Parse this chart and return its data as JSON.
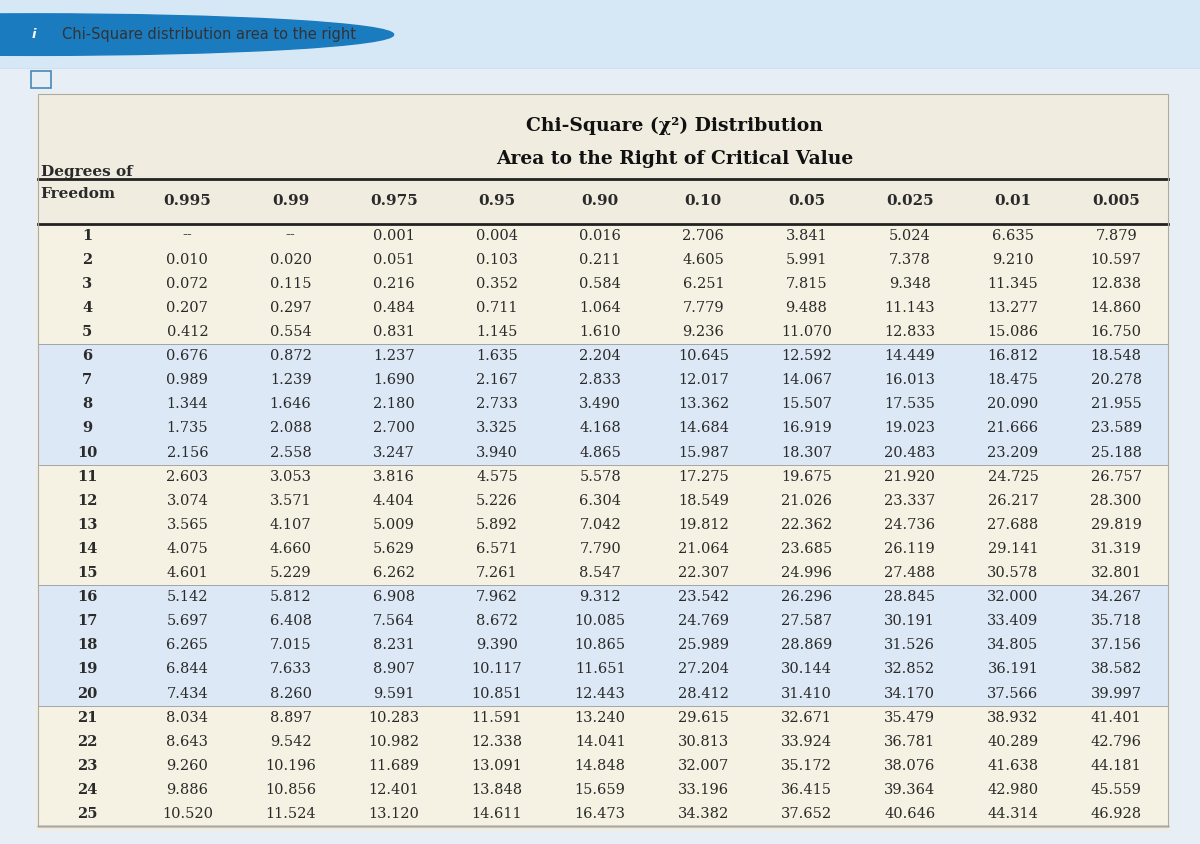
{
  "title_line1": "Chi-Square (χ²) Distribution",
  "title_line2": "Area to the Right of Critical Value",
  "col_headers": [
    "0.995",
    "0.99",
    "0.975",
    "0.95",
    "0.90",
    "0.10",
    "0.05",
    "0.025",
    "0.01",
    "0.005"
  ],
  "rows": [
    [
      1,
      "--",
      "--",
      "0.001",
      "0.004",
      "0.016",
      "2.706",
      "3.841",
      "5.024",
      "6.635",
      "7.879"
    ],
    [
      2,
      "0.010",
      "0.020",
      "0.051",
      "0.103",
      "0.211",
      "4.605",
      "5.991",
      "7.378",
      "9.210",
      "10.597"
    ],
    [
      3,
      "0.072",
      "0.115",
      "0.216",
      "0.352",
      "0.584",
      "6.251",
      "7.815",
      "9.348",
      "11.345",
      "12.838"
    ],
    [
      4,
      "0.207",
      "0.297",
      "0.484",
      "0.711",
      "1.064",
      "7.779",
      "9.488",
      "11.143",
      "13.277",
      "14.860"
    ],
    [
      5,
      "0.412",
      "0.554",
      "0.831",
      "1.145",
      "1.610",
      "9.236",
      "11.070",
      "12.833",
      "15.086",
      "16.750"
    ],
    [
      6,
      "0.676",
      "0.872",
      "1.237",
      "1.635",
      "2.204",
      "10.645",
      "12.592",
      "14.449",
      "16.812",
      "18.548"
    ],
    [
      7,
      "0.989",
      "1.239",
      "1.690",
      "2.167",
      "2.833",
      "12.017",
      "14.067",
      "16.013",
      "18.475",
      "20.278"
    ],
    [
      8,
      "1.344",
      "1.646",
      "2.180",
      "2.733",
      "3.490",
      "13.362",
      "15.507",
      "17.535",
      "20.090",
      "21.955"
    ],
    [
      9,
      "1.735",
      "2.088",
      "2.700",
      "3.325",
      "4.168",
      "14.684",
      "16.919",
      "19.023",
      "21.666",
      "23.589"
    ],
    [
      10,
      "2.156",
      "2.558",
      "3.247",
      "3.940",
      "4.865",
      "15.987",
      "18.307",
      "20.483",
      "23.209",
      "25.188"
    ],
    [
      11,
      "2.603",
      "3.053",
      "3.816",
      "4.575",
      "5.578",
      "17.275",
      "19.675",
      "21.920",
      "24.725",
      "26.757"
    ],
    [
      12,
      "3.074",
      "3.571",
      "4.404",
      "5.226",
      "6.304",
      "18.549",
      "21.026",
      "23.337",
      "26.217",
      "28.300"
    ],
    [
      13,
      "3.565",
      "4.107",
      "5.009",
      "5.892",
      "7.042",
      "19.812",
      "22.362",
      "24.736",
      "27.688",
      "29.819"
    ],
    [
      14,
      "4.075",
      "4.660",
      "5.629",
      "6.571",
      "7.790",
      "21.064",
      "23.685",
      "26.119",
      "29.141",
      "31.319"
    ],
    [
      15,
      "4.601",
      "5.229",
      "6.262",
      "7.261",
      "8.547",
      "22.307",
      "24.996",
      "27.488",
      "30.578",
      "32.801"
    ],
    [
      16,
      "5.142",
      "5.812",
      "6.908",
      "7.962",
      "9.312",
      "23.542",
      "26.296",
      "28.845",
      "32.000",
      "34.267"
    ],
    [
      17,
      "5.697",
      "6.408",
      "7.564",
      "8.672",
      "10.085",
      "24.769",
      "27.587",
      "30.191",
      "33.409",
      "35.718"
    ],
    [
      18,
      "6.265",
      "7.015",
      "8.231",
      "9.390",
      "10.865",
      "25.989",
      "28.869",
      "31.526",
      "34.805",
      "37.156"
    ],
    [
      19,
      "6.844",
      "7.633",
      "8.907",
      "10.117",
      "11.651",
      "27.204",
      "30.144",
      "32.852",
      "36.191",
      "38.582"
    ],
    [
      20,
      "7.434",
      "8.260",
      "9.591",
      "10.851",
      "12.443",
      "28.412",
      "31.410",
      "34.170",
      "37.566",
      "39.997"
    ],
    [
      21,
      "8.034",
      "8.897",
      "10.283",
      "11.591",
      "13.240",
      "29.615",
      "32.671",
      "35.479",
      "38.932",
      "41.401"
    ],
    [
      22,
      "8.643",
      "9.542",
      "10.982",
      "12.338",
      "14.041",
      "30.813",
      "33.924",
      "36.781",
      "40.289",
      "42.796"
    ],
    [
      23,
      "9.260",
      "10.196",
      "11.689",
      "13.091",
      "14.848",
      "32.007",
      "35.172",
      "38.076",
      "41.638",
      "44.181"
    ],
    [
      24,
      "9.886",
      "10.856",
      "12.401",
      "13.848",
      "15.659",
      "33.196",
      "36.415",
      "39.364",
      "42.980",
      "45.559"
    ],
    [
      25,
      "10.520",
      "11.524",
      "13.120",
      "14.611",
      "16.473",
      "34.382",
      "37.652",
      "40.646",
      "44.314",
      "46.928"
    ]
  ],
  "page_bg": "#e8eef6",
  "table_outer_bg": "#f0ede0",
  "row_bg_cream": "#f5f2e3",
  "row_bg_blue": "#dce8f5",
  "text_color": "#2a2a2a",
  "title_color": "#111111",
  "info_bar_bg": "#d6e8f5",
  "info_bar_text": "Chi-Square distribution area to the right",
  "info_icon_color": "#1a7bbf",
  "thick_line_color": "#222222",
  "thin_line_color": "#999999"
}
